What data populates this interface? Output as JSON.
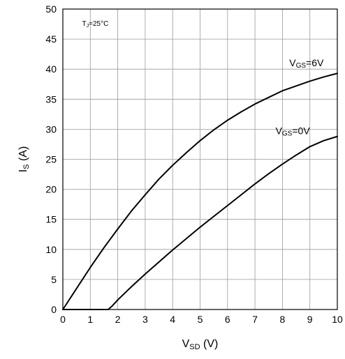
{
  "chart_data": {
    "type": "line",
    "title": "",
    "xlabel": "V",
    "xlabel_sub": "SD",
    "xlabel_unit": " (V)",
    "ylabel": "I",
    "ylabel_sub": "S",
    "ylabel_unit": " (A)",
    "xlim": [
      0,
      10
    ],
    "ylim": [
      0,
      50
    ],
    "x_ticks": [
      "0",
      "1",
      "2",
      "3",
      "4",
      "5",
      "6",
      "7",
      "8",
      "9",
      "10"
    ],
    "y_ticks": [
      "0",
      "5",
      "10",
      "15",
      "20",
      "25",
      "30",
      "35",
      "40",
      "45",
      "50"
    ],
    "grid": true,
    "annotation": {
      "main": "T",
      "sub": "J",
      "rest": "=25°C"
    },
    "series": [
      {
        "name": "VGS=6V",
        "label_main": "V",
        "label_sub": "GS",
        "label_rest": "=6V",
        "x": [
          0,
          0.5,
          1,
          1.5,
          2,
          2.5,
          3,
          3.5,
          4,
          4.5,
          5,
          5.5,
          6,
          6.5,
          7,
          7.5,
          8,
          8.5,
          9,
          9.5,
          10
        ],
        "y": [
          0,
          3.5,
          7,
          10.3,
          13.4,
          16.4,
          19.1,
          21.7,
          24,
          26.1,
          28.1,
          29.9,
          31.5,
          32.9,
          34.2,
          35.3,
          36.4,
          37.2,
          38,
          38.7,
          39.3
        ]
      },
      {
        "name": "VGS=0V",
        "label_main": "V",
        "label_sub": "GS",
        "label_rest": "=0V",
        "x": [
          0,
          0.5,
          1,
          1.5,
          1.65,
          1.8,
          2,
          2.5,
          3,
          3.5,
          4,
          4.5,
          5,
          5.5,
          6,
          6.5,
          7,
          7.5,
          8,
          8.5,
          9,
          9.5,
          10
        ],
        "y": [
          0,
          0,
          0,
          0,
          0,
          0.6,
          1.6,
          3.8,
          5.9,
          7.9,
          9.9,
          11.8,
          13.7,
          15.5,
          17.3,
          19.1,
          20.9,
          22.6,
          24.2,
          25.7,
          27.1,
          28.1,
          28.8
        ]
      }
    ]
  }
}
